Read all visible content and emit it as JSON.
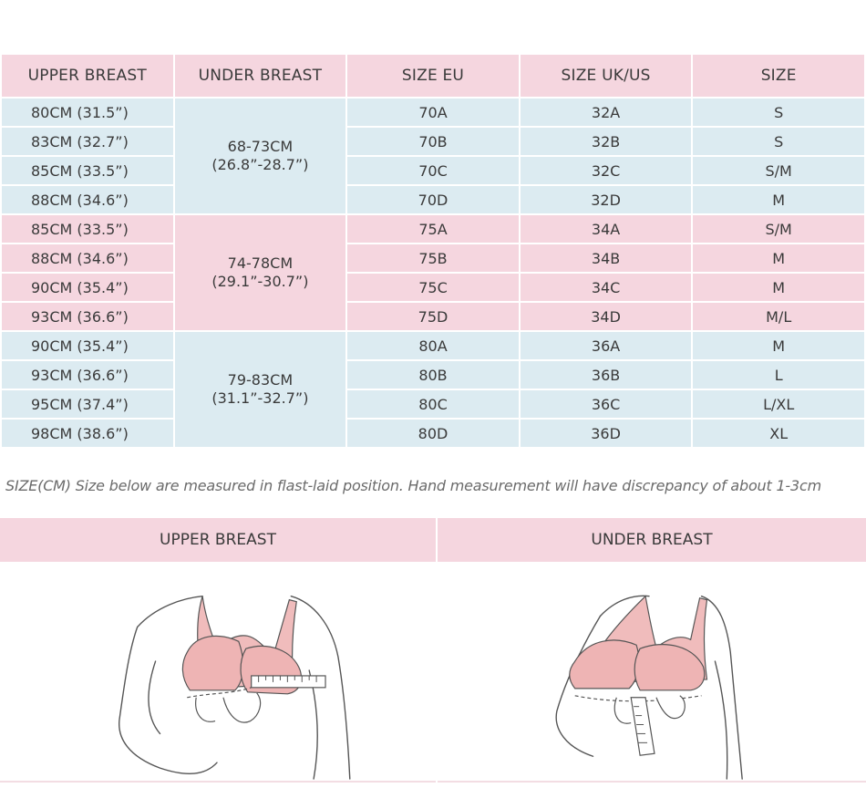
{
  "table": {
    "headers": [
      "UPPER BREAST",
      "UNDER BREAST",
      "SIZE EU",
      "SIZE UK/US",
      "SIZE"
    ],
    "groups": [
      {
        "under": [
          "68-73CM",
          "(26.8”-28.7”)"
        ],
        "rows": [
          [
            "80CM (31.5”)",
            "70A",
            "32A",
            "S"
          ],
          [
            "83CM (32.7”)",
            "70B",
            "32B",
            "S"
          ],
          [
            "85CM (33.5”)",
            "70C",
            "32C",
            "S/M"
          ],
          [
            "88CM (34.6”)",
            "70D",
            "32D",
            "M"
          ]
        ]
      },
      {
        "under": [
          "74-78CM",
          "(29.1”-30.7”)"
        ],
        "rows": [
          [
            "85CM (33.5”)",
            "75A",
            "34A",
            "S/M"
          ],
          [
            "88CM (34.6”)",
            "75B",
            "34B",
            "M"
          ],
          [
            "90CM (35.4”)",
            "75C",
            "34C",
            "M"
          ],
          [
            "93CM (36.6”)",
            "75D",
            "34D",
            "M/L"
          ]
        ]
      },
      {
        "under": [
          "79-83CM",
          "(31.1”-32.7”)"
        ],
        "rows": [
          [
            "90CM (35.4”)",
            "80A",
            "36A",
            "M"
          ],
          [
            "93CM (36.6”)",
            "80B",
            "36B",
            "L"
          ],
          [
            "95CM (37.4”)",
            "80C",
            "36C",
            "L/XL"
          ],
          [
            "98CM (38.6”)",
            "80D",
            "36D",
            "XL"
          ]
        ]
      }
    ]
  },
  "note": "SIZE(CM) Size below are measured in flast-laid position. Hand measurement will have discrepancy of about 1-3cm",
  "panels": {
    "upper_title": "UPPER BREAST",
    "under_title": "UNDER BREAST"
  },
  "colors": {
    "pink": "#f5d6df",
    "blue": "#dcebf1",
    "bra": "#f0bcbc",
    "line": "#555555"
  }
}
